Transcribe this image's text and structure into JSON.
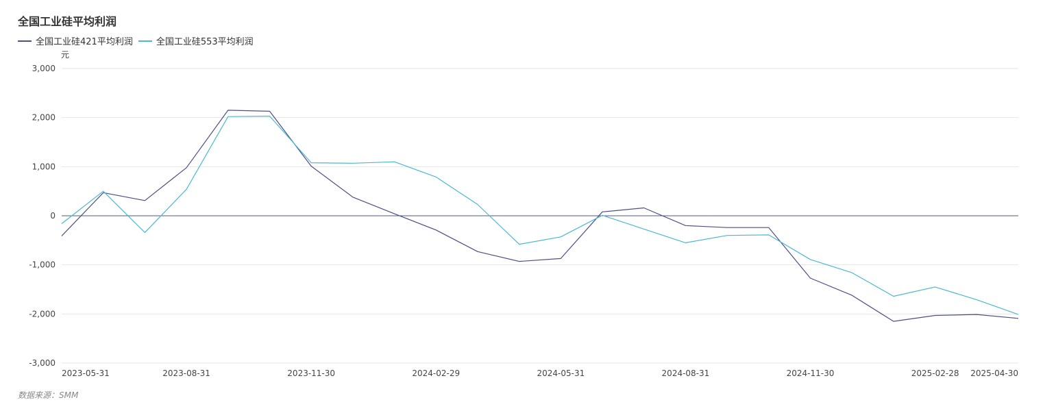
{
  "title": "全国工业硅平均利润",
  "source": "数据来源：SMM",
  "colors": {
    "series1": "#4b4f85",
    "series2": "#4cb8cf",
    "grid": "#e6e6e6",
    "zero_line": "#555a7a"
  },
  "chart_data": {
    "type": "line",
    "title": "全国工业硅平均利润",
    "ylabel": "元",
    "xlabel": "",
    "ylim": [
      -3000,
      3000
    ],
    "yticks": [
      3000,
      2000,
      1000,
      0,
      -1000,
      -2000,
      -3000
    ],
    "ytick_labels": [
      "3,000",
      "2,000",
      "1,000",
      "0",
      "-1,000",
      "-2,000",
      "-3,000"
    ],
    "grid": true,
    "legend": "top-left",
    "x": [
      "2023-05-31",
      "2023-06-30",
      "2023-07-31",
      "2023-08-31",
      "2023-09-30",
      "2023-10-31",
      "2023-11-30",
      "2023-12-31",
      "2024-01-31",
      "2024-02-29",
      "2024-03-31",
      "2024-04-30",
      "2024-05-31",
      "2024-06-30",
      "2024-07-31",
      "2024-08-31",
      "2024-09-30",
      "2024-10-31",
      "2024-11-30",
      "2024-12-31",
      "2025-01-31",
      "2025-02-28",
      "2025-03-31",
      "2025-04-30"
    ],
    "xtick_labels": [
      "2023-05-31",
      "2023-08-31",
      "2023-11-30",
      "2024-02-29",
      "2024-05-31",
      "2024-08-31",
      "2024-11-30",
      "2025-02-28",
      "2025-04-30"
    ],
    "series": [
      {
        "name": "全国工业硅421平均利润",
        "values": [
          -410,
          470,
          310,
          980,
          2150,
          2130,
          1010,
          380,
          40,
          -290,
          -730,
          -930,
          -870,
          80,
          160,
          -200,
          -240,
          -240,
          -1270,
          -1620,
          -2150,
          -2030,
          -2010,
          -2090
        ]
      },
      {
        "name": "全国工业硅553平均利润",
        "values": [
          -160,
          500,
          -340,
          540,
          2020,
          2030,
          1080,
          1070,
          1100,
          790,
          230,
          -580,
          -430,
          10,
          -270,
          -550,
          -400,
          -390,
          -890,
          -1160,
          -1640,
          -1450,
          -1710,
          -2010
        ]
      }
    ]
  }
}
